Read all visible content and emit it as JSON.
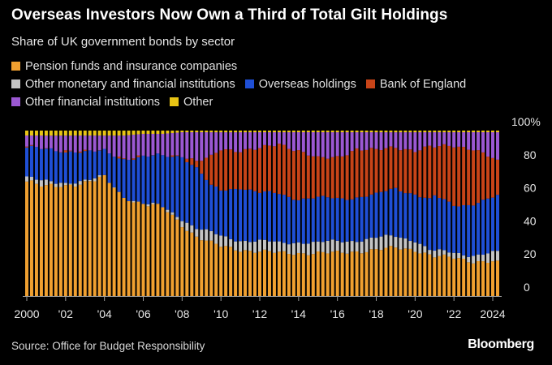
{
  "header": {
    "title": "Overseas Investors Now Own a Third of Total Gilt Holdings",
    "subtitle": "Share of UK government bonds by sector"
  },
  "legend": [
    {
      "label": "Pension funds and insurance companies",
      "color": "#f0a030"
    },
    {
      "label": "Other monetary and financial institutions",
      "color": "#c4c4c4"
    },
    {
      "label": "Overseas holdings",
      "color": "#1f4fd6"
    },
    {
      "label": "Bank of England",
      "color": "#c84418"
    },
    {
      "label": "Other financial institutions",
      "color": "#9b58d2"
    },
    {
      "label": "Other",
      "color": "#e8c414"
    }
  ],
  "footer": {
    "source": "Source: Office for Budget Responsibility",
    "brand": "Bloomberg"
  },
  "chart_data": {
    "type": "bar",
    "stacked": true,
    "x_tick_labels": [
      "2000",
      "'02",
      "'04",
      "'06",
      "'08",
      "'10",
      "'12",
      "'14",
      "'16",
      "'18",
      "'20",
      "'22",
      "2024"
    ],
    "y_tick_labels": [
      "100%",
      "80",
      "60",
      "40",
      "20",
      "0"
    ],
    "y_ticks": [
      100,
      80,
      60,
      40,
      20,
      0
    ],
    "ylim": [
      0,
      100
    ],
    "start": "2000 Q1",
    "end": "2024 Q2",
    "frequency": "quarterly",
    "anchors": [
      {
        "t": 2000.0,
        "pension": 70,
        "other_mfi": 2,
        "overseas": 18,
        "boe": 0,
        "ofi": 7,
        "other": 3
      },
      {
        "t": 2001.0,
        "pension": 66,
        "other_mfi": 3,
        "overseas": 20,
        "boe": 0,
        "ofi": 8,
        "other": 3
      },
      {
        "t": 2002.0,
        "pension": 67,
        "other_mfi": 2,
        "overseas": 19,
        "boe": 0,
        "ofi": 9,
        "other": 3
      },
      {
        "t": 2003.0,
        "pension": 69,
        "other_mfi": 1,
        "overseas": 17,
        "boe": 0,
        "ofi": 10,
        "other": 3
      },
      {
        "t": 2004.0,
        "pension": 72,
        "other_mfi": 0,
        "overseas": 16,
        "boe": 0,
        "ofi": 9,
        "other": 3
      },
      {
        "t": 2005.0,
        "pension": 60,
        "other_mfi": 0,
        "overseas": 23,
        "boe": 0,
        "ofi": 14,
        "other": 3
      },
      {
        "t": 2006.0,
        "pension": 56,
        "other_mfi": 0,
        "overseas": 28,
        "boe": 0,
        "ofi": 14,
        "other": 2
      },
      {
        "t": 2007.0,
        "pension": 55,
        "other_mfi": 0,
        "overseas": 32,
        "boe": 0,
        "ofi": 13,
        "other": 2
      },
      {
        "t": 2008.0,
        "pension": 43,
        "other_mfi": 4,
        "overseas": 38,
        "boe": 0,
        "ofi": 14,
        "other": 1
      },
      {
        "t": 2008.75,
        "pension": 36,
        "other_mfi": 5,
        "overseas": 36,
        "boe": 4,
        "ofi": 18,
        "other": 1
      },
      {
        "t": 2009.5,
        "pension": 32,
        "other_mfi": 6,
        "overseas": 28,
        "boe": 18,
        "ofi": 15,
        "other": 1
      },
      {
        "t": 2010.0,
        "pension": 30,
        "other_mfi": 6,
        "overseas": 28,
        "boe": 25,
        "ofi": 10,
        "other": 1
      },
      {
        "t": 2011.0,
        "pension": 28,
        "other_mfi": 6,
        "overseas": 32,
        "boe": 22,
        "ofi": 11,
        "other": 1
      },
      {
        "t": 2012.0,
        "pension": 27,
        "other_mfi": 6,
        "overseas": 29,
        "boe": 27,
        "ofi": 10,
        "other": 1
      },
      {
        "t": 2013.0,
        "pension": 26,
        "other_mfi": 6,
        "overseas": 30,
        "boe": 30,
        "ofi": 7,
        "other": 1
      },
      {
        "t": 2014.0,
        "pension": 26,
        "other_mfi": 7,
        "overseas": 26,
        "boe": 29,
        "ofi": 11,
        "other": 1
      },
      {
        "t": 2015.0,
        "pension": 26,
        "other_mfi": 6,
        "overseas": 27,
        "boe": 24,
        "ofi": 16,
        "other": 1
      },
      {
        "t": 2016.0,
        "pension": 26,
        "other_mfi": 7,
        "overseas": 26,
        "boe": 25,
        "ofi": 15,
        "other": 1
      },
      {
        "t": 2017.0,
        "pension": 27,
        "other_mfi": 7,
        "overseas": 26,
        "boe": 29,
        "ofi": 10,
        "other": 1
      },
      {
        "t": 2018.0,
        "pension": 28,
        "other_mfi": 7,
        "overseas": 26,
        "boe": 27,
        "ofi": 11,
        "other": 1
      },
      {
        "t": 2019.0,
        "pension": 29,
        "other_mfi": 7,
        "overseas": 29,
        "boe": 25,
        "ofi": 9,
        "other": 1
      },
      {
        "t": 2020.0,
        "pension": 28,
        "other_mfi": 6,
        "overseas": 28,
        "boe": 26,
        "ofi": 11,
        "other": 1
      },
      {
        "t": 2020.75,
        "pension": 25,
        "other_mfi": 3,
        "overseas": 30,
        "boe": 32,
        "ofi": 9,
        "other": 1
      },
      {
        "t": 2021.0,
        "pension": 24,
        "other_mfi": 3,
        "overseas": 33,
        "boe": 30,
        "ofi": 9,
        "other": 1
      },
      {
        "t": 2022.0,
        "pension": 23,
        "other_mfi": 3,
        "overseas": 29,
        "boe": 36,
        "ofi": 8,
        "other": 1
      },
      {
        "t": 2023.0,
        "pension": 21,
        "other_mfi": 4,
        "overseas": 31,
        "boe": 33,
        "ofi": 10,
        "other": 1
      },
      {
        "t": 2024.0,
        "pension": 21,
        "other_mfi": 5,
        "overseas": 33,
        "boe": 24,
        "ofi": 16,
        "other": 1
      },
      {
        "t": 2024.25,
        "pension": 20,
        "other_mfi": 6,
        "overseas": 34,
        "boe": 21,
        "ofi": 18,
        "other": 1
      }
    ],
    "series_order": [
      "pension",
      "other_mfi",
      "overseas",
      "boe",
      "ofi",
      "other"
    ],
    "grid": false,
    "legend_position": "top-left"
  }
}
